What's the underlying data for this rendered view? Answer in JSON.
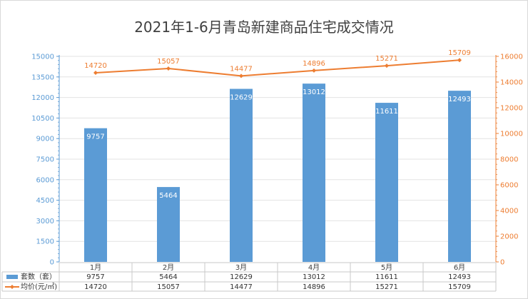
{
  "chart_data": {
    "type": "bar",
    "title": "2021年1-6月青岛新建商品住宅成交情况",
    "categories": [
      "1月",
      "2月",
      "3月",
      "4月",
      "5月",
      "6月"
    ],
    "series": [
      {
        "name": "套数（套）",
        "type": "bar",
        "axis": "left",
        "color": "#5b9bd5",
        "values": [
          9757,
          5464,
          12629,
          13012,
          11611,
          12493
        ]
      },
      {
        "name": "均价(元/㎡)",
        "type": "line",
        "axis": "right",
        "color": "#ed7d31",
        "values": [
          14720,
          15057,
          14477,
          14896,
          15271,
          15709
        ]
      }
    ],
    "y_left": {
      "min": 0,
      "max": 15000,
      "step": 1500,
      "ticks": [
        "0",
        "1500",
        "3000",
        "4500",
        "6000",
        "7500",
        "9000",
        "10500",
        "12000",
        "13500",
        "15000"
      ]
    },
    "y_right": {
      "min": 0,
      "max": 16000,
      "step": 2000,
      "ticks": [
        "0",
        "2000",
        "4000",
        "6000",
        "8000",
        "10000",
        "12000",
        "14000",
        "16000"
      ]
    },
    "grid": true,
    "legend": "data-table",
    "data_table": true
  }
}
